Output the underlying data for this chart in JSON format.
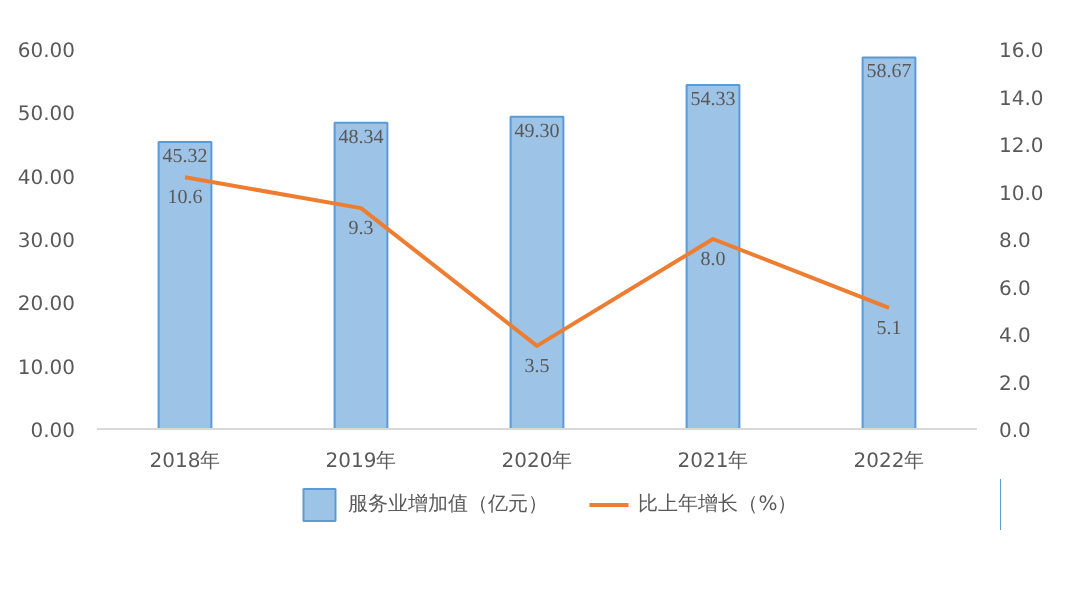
{
  "chart_data": {
    "type": "bar",
    "categories": [
      "2018年",
      "2019年",
      "2020年",
      "2021年",
      "2022年"
    ],
    "series": [
      {
        "name": "服务业增加值（亿元）",
        "color": "#9dc3e6",
        "values": [
          45.32,
          48.34,
          49.3,
          54.33,
          58.67
        ],
        "value_labels": [
          "45.32",
          "48.34",
          "49.30",
          "54.33",
          "58.67"
        ]
      },
      {
        "name": "比上年增长（%）",
        "type": "line",
        "axis": "y2",
        "color": "#ed7d31",
        "values": [
          10.6,
          9.3,
          3.5,
          8.0,
          5.1
        ],
        "value_labels": [
          "10.6",
          "9.3",
          "3.5",
          "8.0",
          "5.1"
        ]
      }
    ],
    "ylim": [
      0,
      60
    ],
    "yticks": [
      {
        "value": 0,
        "label": "0.00"
      },
      {
        "value": 10,
        "label": "10.00"
      },
      {
        "value": 20,
        "label": "20.00"
      },
      {
        "value": 30,
        "label": "30.00"
      },
      {
        "value": 40,
        "label": "40.00"
      },
      {
        "value": 50,
        "label": "50.00"
      },
      {
        "value": 60,
        "label": "60.00"
      }
    ],
    "y2lim": [
      0,
      16
    ],
    "y2ticks": [
      {
        "value": 0,
        "label": "0.0"
      },
      {
        "value": 2,
        "label": "2.0"
      },
      {
        "value": 4,
        "label": "4.0"
      },
      {
        "value": 6,
        "label": "6.0"
      },
      {
        "value": 8,
        "label": "8.0"
      },
      {
        "value": 10,
        "label": "10.0"
      },
      {
        "value": 12,
        "label": "12.0"
      },
      {
        "value": 14,
        "label": "14.0"
      },
      {
        "value": 16,
        "label": "16.0"
      }
    ],
    "data_labels": true,
    "legend": "bottom",
    "grid": false,
    "marker": "none",
    "line_style": "solid"
  }
}
